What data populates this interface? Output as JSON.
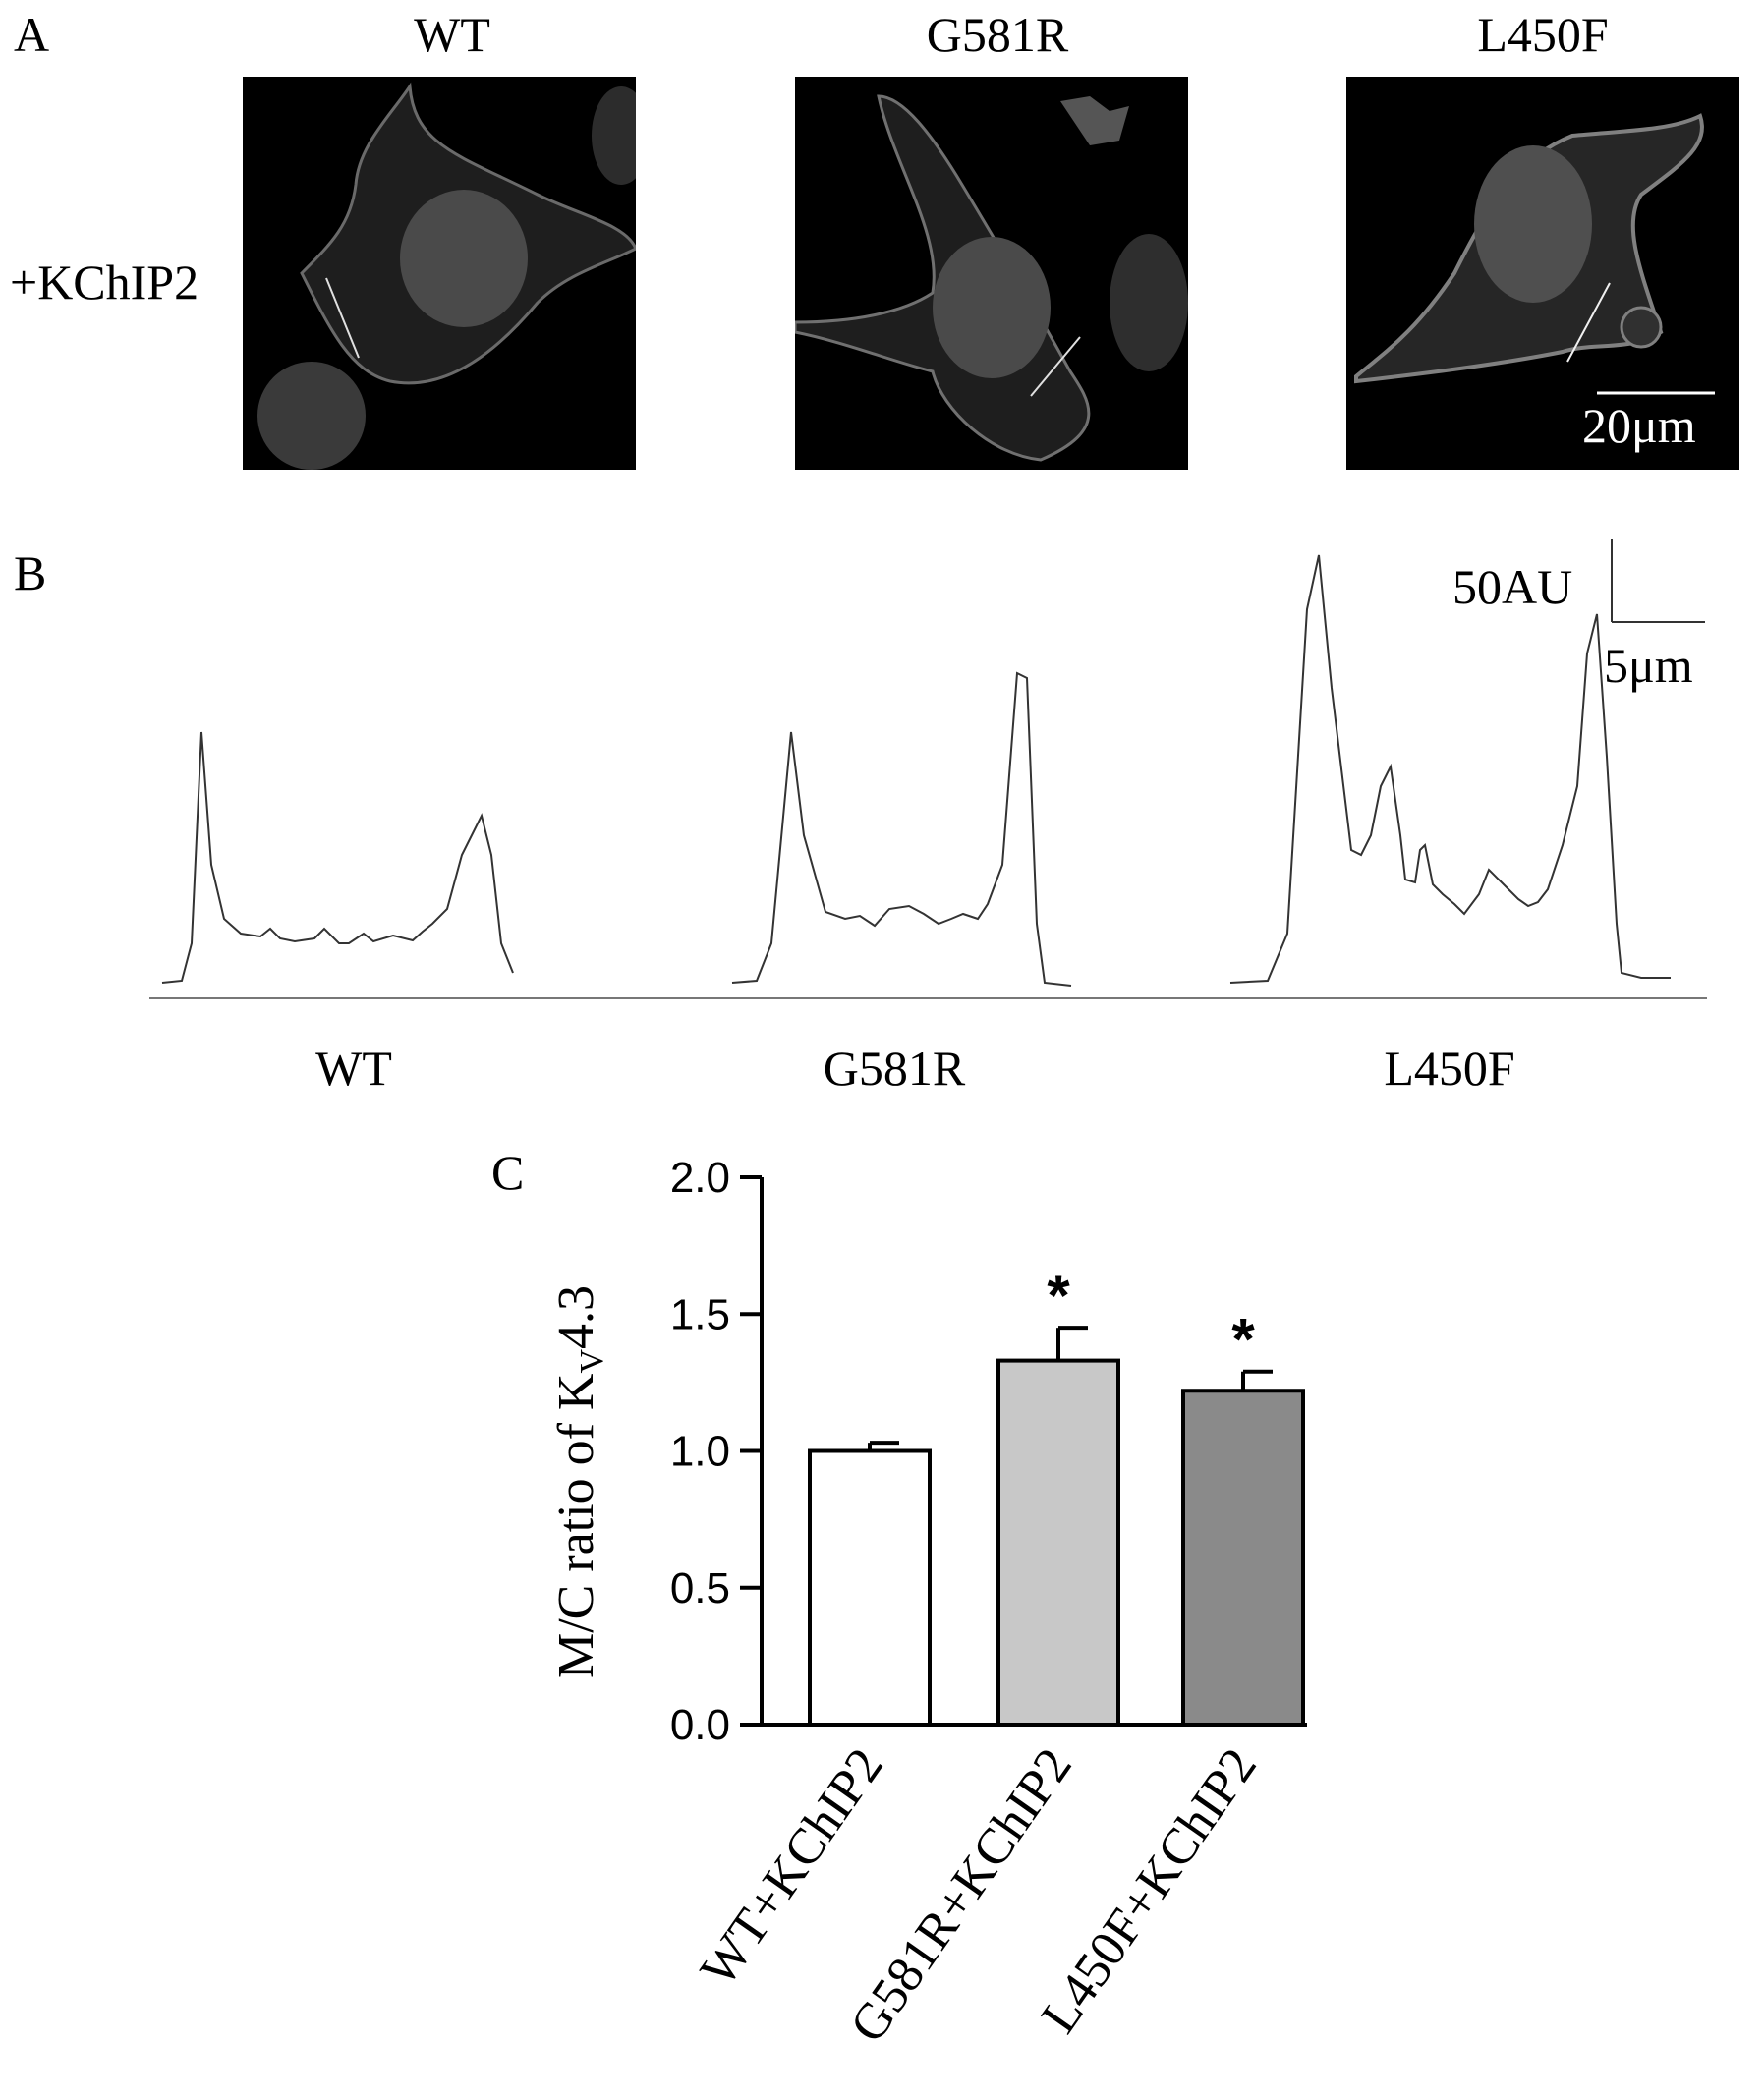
{
  "panel_a": {
    "letter": "A",
    "row_label": "+KChIP2",
    "columns": [
      {
        "title": "WT"
      },
      {
        "title": "G581R"
      },
      {
        "title": "L450F"
      }
    ],
    "scale_bar_label": "20μm"
  },
  "panel_b": {
    "letter": "B",
    "scale_y_label": "50AU",
    "scale_x_label": "5μm",
    "trace_labels": [
      "WT",
      "G581R",
      "L450F"
    ]
  },
  "colors": {
    "cell_stain": "#5a5a5a",
    "bar_wt": "#ffffff",
    "bar_g581r": "#c8c8c8",
    "bar_l450f": "#8a8a8a"
  },
  "chart_data": {
    "type": "bar",
    "panel_letter": "C",
    "ylabel_main": "M/C ratio of K",
    "ylabel_sub": "V",
    "ylabel_tail": "4.3",
    "ylim": [
      0,
      2.0
    ],
    "yticks": [
      "0.0",
      "0.5",
      "1.0",
      "1.5",
      "2.0"
    ],
    "categories": [
      "WT+KChIP2",
      "G581R+KChIP2",
      "L450F+KChIP2"
    ],
    "values": [
      1.0,
      1.33,
      1.22
    ],
    "errors": [
      0.03,
      0.12,
      0.07
    ],
    "significance": [
      "",
      "*",
      "*"
    ]
  }
}
